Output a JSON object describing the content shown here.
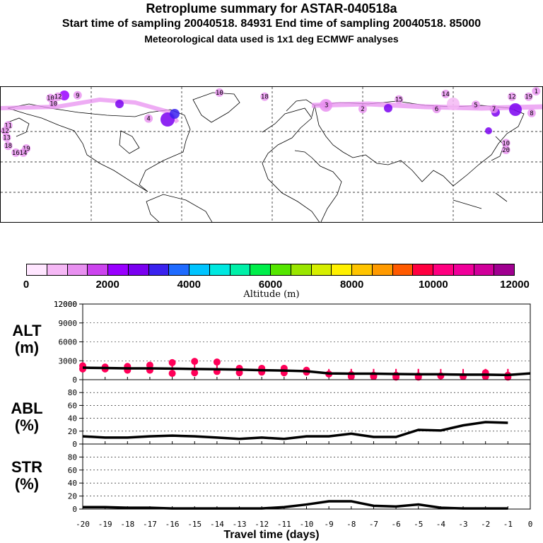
{
  "header": {
    "title": "Retroplume summary for ASTAR-040518a",
    "line2": "Start time of sampling 20040518. 84931     End time of sampling 20040518. 85000",
    "line3": "Meteorological data used is 1x1 deg ECMWF analyses"
  },
  "colorbar": {
    "label": "Altitude (m)",
    "ticks": [
      "0",
      "2000",
      "4000",
      "6000",
      "8000",
      "10000",
      "12000"
    ],
    "colors": [
      "#ffe6ff",
      "#f5b8f5",
      "#e890f0",
      "#cc44ee",
      "#9900ff",
      "#7a00f0",
      "#3a22ee",
      "#1f6bff",
      "#00c4ff",
      "#00e8e0",
      "#00f0a8",
      "#00ee4a",
      "#55e600",
      "#9ae600",
      "#d6ee00",
      "#fff000",
      "#ffc400",
      "#ff9a00",
      "#ff5a00",
      "#ff0040",
      "#ff0080",
      "#f0009a",
      "#d0009a",
      "#a00090"
    ]
  },
  "map": {
    "markers": [
      {
        "label": "10",
        "lon": -147,
        "lat": 85
      },
      {
        "label": "12",
        "lon": -142,
        "lat": 86
      },
      {
        "label": "9",
        "lon": -129,
        "lat": 87
      },
      {
        "label": "10",
        "lon": -145,
        "lat": 81
      },
      {
        "label": "10",
        "lon": -35,
        "lat": 89
      },
      {
        "label": "18",
        "lon": -5,
        "lat": 86
      },
      {
        "label": "14",
        "lon": 115,
        "lat": 88
      },
      {
        "label": "15",
        "lon": 84,
        "lat": 84
      },
      {
        "label": "12",
        "lon": 159,
        "lat": 86
      },
      {
        "label": "19",
        "lon": 170,
        "lat": 86
      },
      {
        "label": "1",
        "lon": 175,
        "lat": 90
      },
      {
        "label": "2",
        "lon": 60,
        "lat": 77
      },
      {
        "label": "3",
        "lon": 36,
        "lat": 80
      },
      {
        "label": "5",
        "lon": 135,
        "lat": 80
      },
      {
        "label": "6",
        "lon": 109,
        "lat": 77
      },
      {
        "label": "7",
        "lon": 147,
        "lat": 77
      },
      {
        "label": "8",
        "lon": 172,
        "lat": 74
      },
      {
        "label": "4",
        "lon": -82,
        "lat": 70
      },
      {
        "label": "10",
        "lon": 155,
        "lat": 52
      },
      {
        "label": "20",
        "lon": 155,
        "lat": 47
      },
      {
        "label": "11",
        "lon": -175,
        "lat": 65
      },
      {
        "label": "12",
        "lon": -177,
        "lat": 61
      },
      {
        "label": "13",
        "lon": -176,
        "lat": 56
      },
      {
        "label": "18",
        "lon": -175,
        "lat": 50
      },
      {
        "label": "16",
        "lon": -170,
        "lat": 45
      },
      {
        "label": "19",
        "lon": -163,
        "lat": 48
      },
      {
        "label": "14",
        "lon": -165,
        "lat": 45
      }
    ]
  },
  "panels": {
    "alt": {
      "label_top": "ALT",
      "label_bottom": "(m)"
    },
    "abl": {
      "label_top": "ABL",
      "label_bottom": "(%)"
    },
    "str": {
      "label_top": "STR",
      "label_bottom": "(%)"
    }
  },
  "x_axis_label": "Travel time (days)",
  "chart_data": [
    {
      "type": "line",
      "name": "ALT",
      "title": "",
      "xlabel": "Travel time (days)",
      "ylabel": "ALT (m)",
      "xlim": [
        -20,
        0
      ],
      "ylim": [
        0,
        12000
      ],
      "x_ticks": [
        -20,
        -19,
        -18,
        -17,
        -16,
        -15,
        -14,
        -13,
        -12,
        -11,
        -10,
        -9,
        -8,
        -7,
        -6,
        -5,
        -4,
        -3,
        -2,
        -1,
        0
      ],
      "y_ticks": [
        0,
        3000,
        6000,
        9000,
        12000
      ],
      "x": [
        -20,
        -19,
        -18,
        -17,
        -16,
        -15,
        -14,
        -13,
        -12,
        -11,
        -10,
        -9,
        -8,
        -7,
        -6,
        -5,
        -4,
        -3,
        -2,
        -1,
        0
      ],
      "y": [
        1900,
        1850,
        1800,
        1800,
        1750,
        1700,
        1650,
        1600,
        1500,
        1450,
        1350,
        1000,
        950,
        950,
        900,
        850,
        850,
        800,
        800,
        750,
        1000
      ],
      "scatter": [
        {
          "x": -20,
          "y": 2200
        },
        {
          "x": -20,
          "y": 1700
        },
        {
          "x": -19,
          "y": 2000
        },
        {
          "x": -19,
          "y": 1700
        },
        {
          "x": -18,
          "y": 2100
        },
        {
          "x": -18,
          "y": 1500
        },
        {
          "x": -17,
          "y": 2300
        },
        {
          "x": -17,
          "y": 1500
        },
        {
          "x": -16,
          "y": 2700
        },
        {
          "x": -16,
          "y": 1000
        },
        {
          "x": -15,
          "y": 2900
        },
        {
          "x": -15,
          "y": 1100
        },
        {
          "x": -14,
          "y": 2800
        },
        {
          "x": -14,
          "y": 1300
        },
        {
          "x": -13,
          "y": 1800
        },
        {
          "x": -13,
          "y": 1100
        },
        {
          "x": -12,
          "y": 1800
        },
        {
          "x": -12,
          "y": 1200
        },
        {
          "x": -11,
          "y": 1800
        },
        {
          "x": -11,
          "y": 1100
        },
        {
          "x": -10,
          "y": 1500
        },
        {
          "x": -10,
          "y": 1200
        },
        {
          "x": -9,
          "y": 900
        },
        {
          "x": -8,
          "y": 800
        },
        {
          "x": -8,
          "y": 500
        },
        {
          "x": -7,
          "y": 700
        },
        {
          "x": -7,
          "y": 500
        },
        {
          "x": -6,
          "y": 700
        },
        {
          "x": -6,
          "y": 400
        },
        {
          "x": -5,
          "y": 600
        },
        {
          "x": -5,
          "y": 400
        },
        {
          "x": -4,
          "y": 600
        },
        {
          "x": -3,
          "y": 500
        },
        {
          "x": -2,
          "y": 1100
        },
        {
          "x": -2,
          "y": 500
        },
        {
          "x": -1,
          "y": 700
        },
        {
          "x": -1,
          "y": 400
        }
      ],
      "marker_color": "#ff0058"
    },
    {
      "type": "line",
      "name": "ABL",
      "ylabel": "ABL (%)",
      "xlim": [
        -20,
        0
      ],
      "ylim": [
        0,
        100
      ],
      "y_ticks": [
        0,
        20,
        40,
        60,
        80
      ],
      "x": [
        -20,
        -19,
        -18,
        -17,
        -16,
        -15,
        -14,
        -13,
        -12,
        -11,
        -10,
        -9,
        -8,
        -7,
        -6,
        -5,
        -4,
        -3,
        -2,
        -1
      ],
      "y": [
        12,
        10,
        10,
        12,
        13,
        12,
        10,
        8,
        10,
        8,
        12,
        12,
        16,
        11,
        11,
        22,
        21,
        29,
        34,
        33
      ]
    },
    {
      "type": "line",
      "name": "STR",
      "ylabel": "STR (%)",
      "xlim": [
        -20,
        0
      ],
      "ylim": [
        0,
        100
      ],
      "y_ticks": [
        0,
        20,
        40,
        60,
        80
      ],
      "x": [
        -20,
        -19,
        -18,
        -17,
        -16,
        -15,
        -14,
        -13,
        -12,
        -11,
        -10,
        -9,
        -8,
        -7,
        -6,
        -5,
        -4,
        -3,
        -2,
        -1
      ],
      "y": [
        3,
        3,
        2,
        2,
        1,
        1,
        1,
        1,
        1,
        3,
        7,
        12,
        12,
        5,
        4,
        7,
        2,
        1,
        1,
        1
      ]
    }
  ]
}
